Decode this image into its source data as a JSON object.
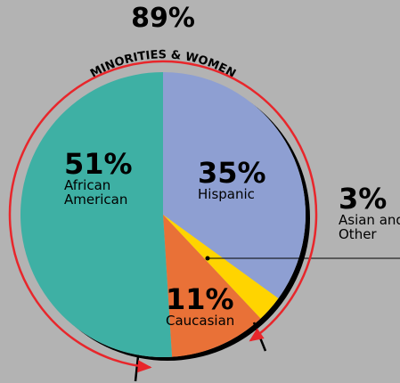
{
  "chart_data": {
    "type": "pie",
    "annotation": {
      "value": 89,
      "label": "89%",
      "text": "MINORITIES & WOMEN",
      "color": "#e8262b"
    },
    "categories": [
      "Hispanic",
      "Asian and Other",
      "Caucasian",
      "African American"
    ],
    "values": [
      35,
      3,
      11,
      51
    ],
    "value_labels": [
      "35%",
      "3%",
      "11%",
      "51%"
    ],
    "colors": [
      "#8e9fd2",
      "#ffd400",
      "#e97137",
      "#3eb0a4"
    ]
  }
}
